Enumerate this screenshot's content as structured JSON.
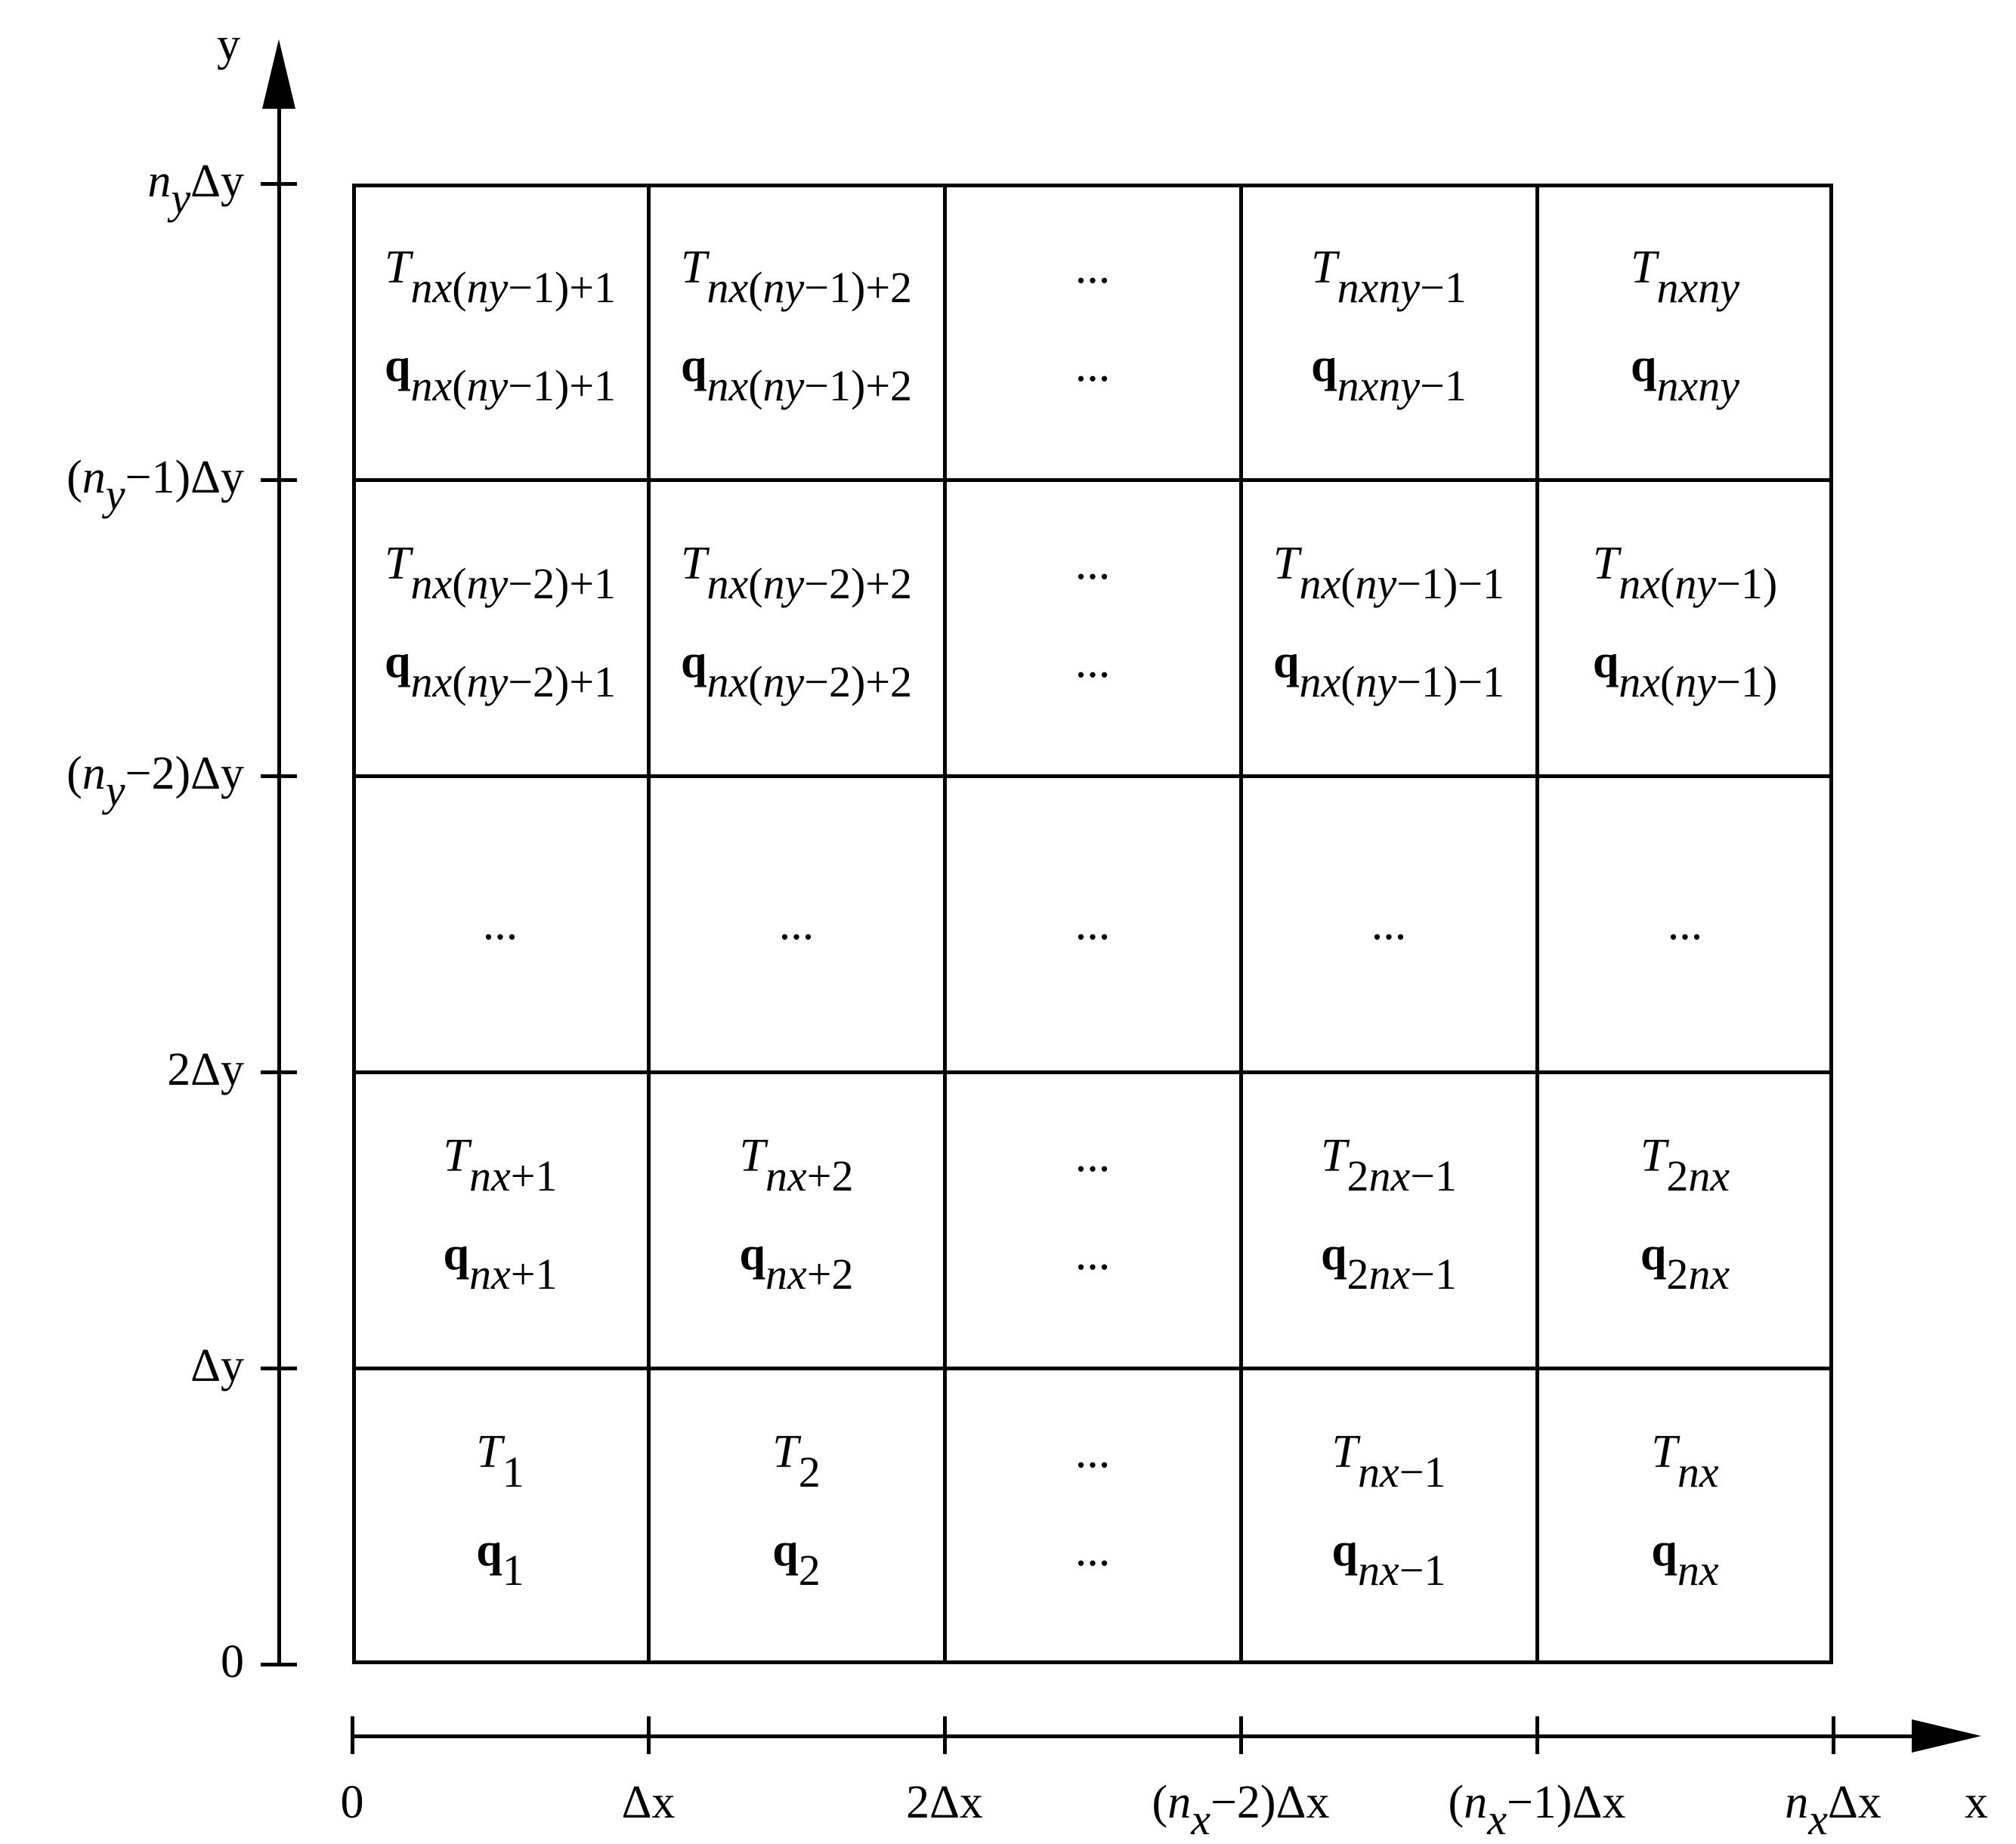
{
  "axes": {
    "x_name": "x",
    "y_name": "y",
    "x_ticks": [
      {
        "text": "0"
      },
      {
        "text": "Δx"
      },
      {
        "text": "2Δx"
      },
      {
        "pre": "(",
        "var": "n",
        "sub": "x",
        "post": "−2)Δx"
      },
      {
        "pre": "(",
        "var": "n",
        "sub": "x",
        "post": "−1)Δx"
      },
      {
        "pre": "",
        "var": "n",
        "sub": "x",
        "post": "Δx"
      }
    ],
    "y_ticks": [
      {
        "text": "0"
      },
      {
        "text": "Δy"
      },
      {
        "text": "2Δy"
      },
      {
        "pre": "(",
        "var": "n",
        "sub": "y",
        "post": "−2)Δy"
      },
      {
        "pre": "(",
        "var": "n",
        "sub": "y",
        "post": "−1)Δy"
      },
      {
        "pre": "",
        "var": "n",
        "sub": "y",
        "post": "Δy"
      }
    ]
  },
  "cells": [
    [
      {
        "T": "nx(ny−1)+1",
        "q": "nx(ny−1)+1"
      },
      {
        "T": "nx(ny−1)+2",
        "q": "nx(ny−1)+2"
      },
      {
        "dots": "..."
      },
      {
        "T": "nxny−1",
        "q": "nxny−1"
      },
      {
        "T": "nxny",
        "q": "nxny"
      }
    ],
    [
      {
        "T": "nx(ny−2)+1",
        "q": "nx(ny−2)+1"
      },
      {
        "T": "nx(ny−2)+2",
        "q": "nx(ny−2)+2"
      },
      {
        "dots": "..."
      },
      {
        "T": "nx(ny−1)−1",
        "q": "nx(ny−1)−1"
      },
      {
        "T": "nx(ny−1)",
        "q": "nx(ny−1)"
      }
    ],
    [
      {
        "single": "..."
      },
      {
        "single": "..."
      },
      {
        "single": "..."
      },
      {
        "single": "..."
      },
      {
        "single": "..."
      }
    ],
    [
      {
        "T": "nx+1",
        "q": "nx+1"
      },
      {
        "T": "nx+2",
        "q": "nx+2"
      },
      {
        "dots": "..."
      },
      {
        "T": "2nx−1",
        "q": "2nx−1"
      },
      {
        "T": "2nx",
        "q": "2nx"
      }
    ],
    [
      {
        "T": "1",
        "q": "1"
      },
      {
        "T": "2",
        "q": "2"
      },
      {
        "dots": "..."
      },
      {
        "T": "nx−1",
        "q": "nx−1"
      },
      {
        "T": "nx",
        "q": "nx"
      }
    ]
  ],
  "symbols": {
    "T": "T",
    "q": "q"
  }
}
